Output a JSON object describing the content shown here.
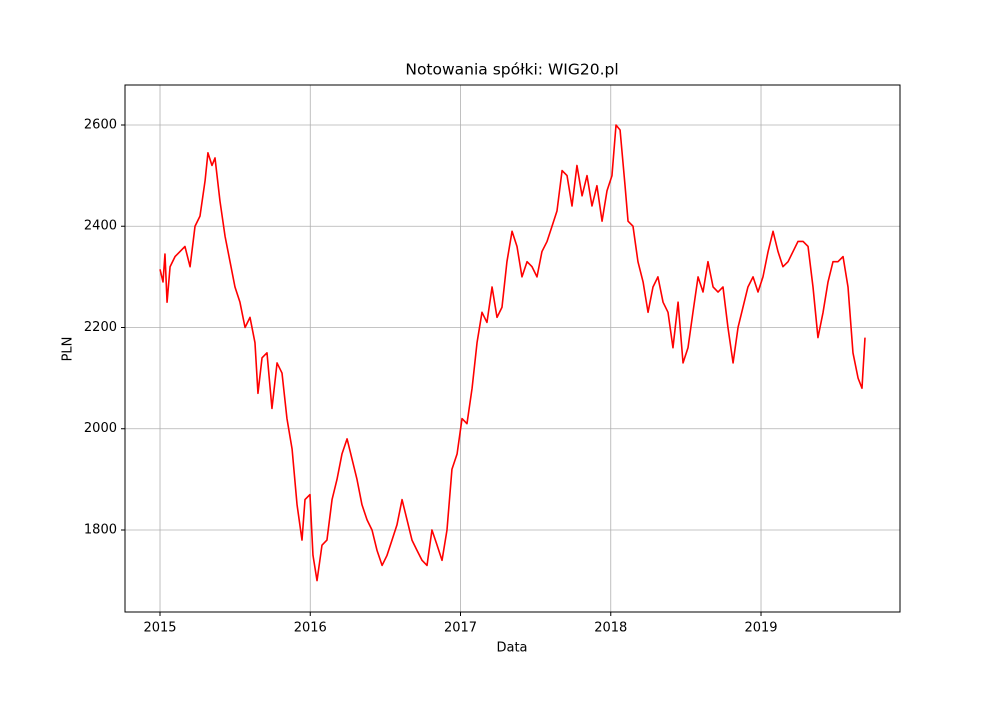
{
  "chart_data": {
    "type": "line",
    "title": "Notowania spółki: WIG20.pl",
    "xlabel": "Data",
    "ylabel": "PLN",
    "x": [
      2015.0,
      2015.02,
      2015.033,
      2015.047,
      2015.067,
      2015.1,
      2015.133,
      2015.166,
      2015.2,
      2015.233,
      2015.266,
      2015.3,
      2015.319,
      2015.346,
      2015.366,
      2015.399,
      2015.433,
      2015.466,
      2015.499,
      2015.532,
      2015.566,
      2015.599,
      2015.632,
      2015.652,
      2015.679,
      2015.712,
      2015.745,
      2015.779,
      2015.812,
      2015.845,
      2015.879,
      2015.912,
      2015.945,
      2015.965,
      2015.998,
      2016.018,
      2016.045,
      2016.078,
      2016.111,
      2016.145,
      2016.178,
      2016.211,
      2016.245,
      2016.278,
      2016.311,
      2016.344,
      2016.378,
      2016.411,
      2016.444,
      2016.478,
      2016.511,
      2016.544,
      2016.577,
      2016.611,
      2016.644,
      2016.677,
      2016.71,
      2016.744,
      2016.777,
      2016.81,
      2016.844,
      2016.877,
      2016.91,
      2016.943,
      2016.977,
      2017.01,
      2017.043,
      2017.077,
      2017.11,
      2017.143,
      2017.176,
      2017.21,
      2017.243,
      2017.276,
      2017.309,
      2017.343,
      2017.376,
      2017.409,
      2017.443,
      2017.476,
      2017.509,
      2017.542,
      2017.576,
      2017.609,
      2017.642,
      2017.676,
      2017.709,
      2017.742,
      2017.775,
      2017.809,
      2017.842,
      2017.875,
      2017.908,
      2017.942,
      2017.975,
      2018.008,
      2018.035,
      2018.062,
      2018.095,
      2018.115,
      2018.148,
      2018.181,
      2018.215,
      2018.248,
      2018.281,
      2018.314,
      2018.348,
      2018.381,
      2018.414,
      2018.448,
      2018.481,
      2018.514,
      2018.547,
      2018.581,
      2018.614,
      2018.647,
      2018.681,
      2018.714,
      2018.747,
      2018.78,
      2018.814,
      2018.847,
      2018.88,
      2018.913,
      2018.947,
      2018.98,
      2019.013,
      2019.047,
      2019.08,
      2019.113,
      2019.146,
      2019.18,
      2019.213,
      2019.246,
      2019.28,
      2019.313,
      2019.346,
      2019.379,
      2019.413,
      2019.446,
      2019.479,
      2019.512,
      2019.546,
      2019.579,
      2019.612,
      2019.646,
      2019.672,
      2019.692
    ],
    "series": [
      {
        "name": "WIG20.pl",
        "color": "#ff0000",
        "values": [
          2315,
          2290,
          2345,
          2250,
          2320,
          2340,
          2350,
          2360,
          2320,
          2400,
          2420,
          2490,
          2545,
          2520,
          2535,
          2450,
          2380,
          2330,
          2280,
          2250,
          2200,
          2220,
          2170,
          2070,
          2140,
          2150,
          2040,
          2130,
          2110,
          2020,
          1960,
          1850,
          1780,
          1860,
          1870,
          1750,
          1700,
          1770,
          1780,
          1860,
          1900,
          1950,
          1980,
          1940,
          1900,
          1850,
          1820,
          1800,
          1760,
          1730,
          1750,
          1780,
          1810,
          1860,
          1820,
          1780,
          1760,
          1740,
          1730,
          1800,
          1770,
          1740,
          1800,
          1920,
          1950,
          2020,
          2010,
          2080,
          2170,
          2230,
          2210,
          2280,
          2220,
          2240,
          2330,
          2390,
          2360,
          2300,
          2330,
          2320,
          2300,
          2350,
          2370,
          2400,
          2430,
          2510,
          2500,
          2440,
          2520,
          2460,
          2500,
          2440,
          2480,
          2410,
          2470,
          2500,
          2600,
          2590,
          2480,
          2410,
          2400,
          2330,
          2290,
          2230,
          2280,
          2300,
          2250,
          2230,
          2160,
          2250,
          2130,
          2160,
          2230,
          2300,
          2270,
          2330,
          2280,
          2270,
          2280,
          2200,
          2130,
          2200,
          2240,
          2280,
          2300,
          2270,
          2300,
          2350,
          2390,
          2350,
          2320,
          2330,
          2350,
          2370,
          2370,
          2360,
          2280,
          2180,
          2230,
          2290,
          2330,
          2330,
          2340,
          2280,
          2150,
          2100,
          2080,
          2180
        ]
      }
    ],
    "xlim": [
      2014.767,
      2019.925
    ],
    "xticks": [
      2015,
      2016,
      2017,
      2018,
      2019
    ],
    "ylim": [
      1638,
      2679
    ],
    "yticks": [
      1800,
      2000,
      2200,
      2400,
      2600
    ],
    "grid": true
  }
}
